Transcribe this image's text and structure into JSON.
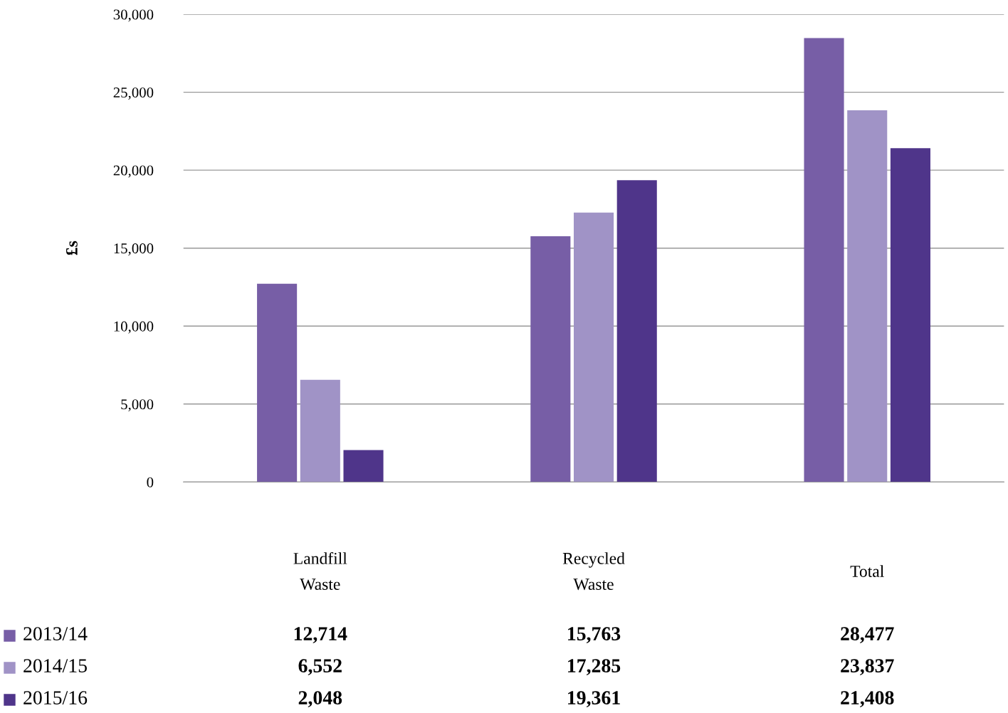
{
  "chart_data": {
    "type": "bar",
    "ylabel": "£s",
    "categories": [
      "Landfill Waste",
      "Recycled Waste",
      "Total"
    ],
    "series": [
      {
        "name": "2013/14",
        "color": "#775ea6",
        "values": [
          12714,
          15763,
          28477
        ],
        "value_labels": [
          "12,714",
          "15,763",
          "28,477"
        ]
      },
      {
        "name": "2014/15",
        "color": "#a093c6",
        "values": [
          6552,
          17285,
          23837
        ],
        "value_labels": [
          "6,552",
          "17,285",
          "23,837"
        ]
      },
      {
        "name": "2015/16",
        "color": "#4f358a",
        "values": [
          2048,
          19361,
          21408
        ],
        "value_labels": [
          "2,048",
          "19,361",
          "21,408"
        ]
      }
    ],
    "ylim": [
      0,
      30000
    ],
    "yticks": [
      {
        "value": 0,
        "label": "0"
      },
      {
        "value": 5000,
        "label": "5,000"
      },
      {
        "value": 10000,
        "label": "10,000"
      },
      {
        "value": 15000,
        "label": "15,000"
      },
      {
        "value": 20000,
        "label": "20,000"
      },
      {
        "value": 25000,
        "label": "25,000"
      },
      {
        "value": 30000,
        "label": "30,000"
      }
    ],
    "grid": "y",
    "legend": "bottom left"
  }
}
